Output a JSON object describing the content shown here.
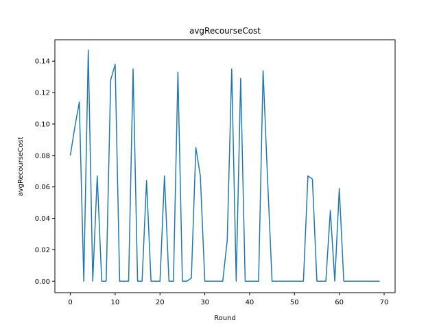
{
  "chart_data": {
    "type": "line",
    "title": "avgRecourseCost",
    "xlabel": "Round",
    "ylabel": "avgRecourseCost",
    "xlim": [
      -3.45,
      72.45
    ],
    "ylim": [
      -0.0073,
      0.1536
    ],
    "xticks": [
      0,
      10,
      20,
      30,
      40,
      50,
      60,
      70
    ],
    "yticks": [
      0.0,
      0.02,
      0.04,
      0.06,
      0.08,
      0.1,
      0.12,
      0.14
    ],
    "ytick_labels": [
      "0.00",
      "0.02",
      "0.04",
      "0.06",
      "0.08",
      "0.10",
      "0.12",
      "0.14"
    ],
    "grid": false,
    "line_color": "#1f77b4",
    "series": [
      {
        "x": [
          0,
          1,
          2,
          3,
          4,
          5,
          6,
          7,
          8,
          9,
          10,
          11,
          12,
          13,
          14,
          15,
          16,
          17,
          18,
          19,
          20,
          21,
          22,
          23,
          24,
          25,
          26,
          27,
          28,
          29,
          30,
          31,
          32,
          33,
          34,
          35,
          36,
          37,
          38,
          39,
          40,
          41,
          42,
          43,
          44,
          45,
          46,
          47,
          48,
          49,
          50,
          51,
          52,
          53,
          54,
          55,
          56,
          57,
          58,
          59,
          60,
          61,
          62,
          63,
          64,
          65,
          66,
          67,
          68,
          69
        ],
        "values": [
          0.08,
          0.098,
          0.114,
          0.0,
          0.147,
          0.0,
          0.067,
          0.0,
          0.0,
          0.128,
          0.138,
          0.0,
          0.0,
          0.0,
          0.135,
          0.0,
          0.0,
          0.064,
          0.0,
          0.0,
          0.0,
          0.067,
          0.0,
          0.0,
          0.133,
          0.0,
          0.0,
          0.002,
          0.085,
          0.067,
          0.0,
          0.0,
          0.0,
          0.0,
          0.0,
          0.026,
          0.135,
          0.0,
          0.129,
          0.0,
          0.0,
          0.0,
          0.0,
          0.134,
          0.065,
          0.0,
          0.0,
          0.0,
          0.0,
          0.0,
          0.0,
          0.0,
          0.0,
          0.067,
          0.065,
          0.0,
          0.0,
          0.0,
          0.045,
          0.0,
          0.059,
          0.0,
          0.0,
          0.0,
          0.0,
          0.0,
          0.0,
          0.0,
          0.0,
          0.0
        ]
      }
    ]
  }
}
